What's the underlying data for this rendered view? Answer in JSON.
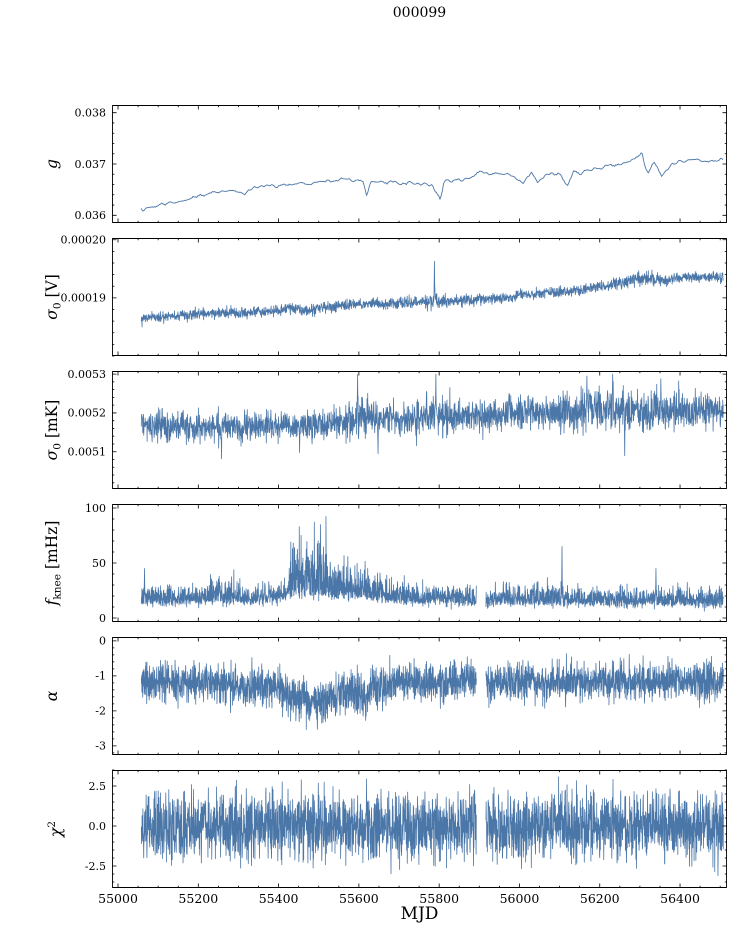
{
  "chart_data": {
    "type": "line",
    "title": "000099",
    "xlabel": "MJD",
    "line_color": "#4a76a8",
    "axis_color": "#000000",
    "x_range": [
      54985,
      56517
    ],
    "x_start": 55058,
    "x_end": 56508,
    "x_ticks": {
      "vals": [
        55000,
        55200,
        55400,
        55600,
        55800,
        56000,
        56200,
        56400
      ],
      "labels": [
        "55000",
        "55200",
        "55400",
        "55600",
        "55800",
        "56000",
        "56200",
        "56400"
      ],
      "minor_step": 50
    },
    "panels": [
      {
        "name": "g",
        "ylabel_parts": [
          {
            "t": "g",
            "style": "it"
          }
        ],
        "ylim": [
          0.03585,
          0.03815
        ],
        "yticks": {
          "vals": [
            0.036,
            0.037,
            0.038
          ],
          "labels": [
            "0.036",
            "0.037",
            "0.038"
          ],
          "minor_step": 0.0002
        },
        "trend": {
          "x": [
            55060,
            55100,
            55150,
            55200,
            55250,
            55290,
            55310,
            55330,
            55360,
            55400,
            55450,
            55500,
            55550,
            55600,
            55612,
            55620,
            55630,
            55660,
            55700,
            55740,
            55780,
            55795,
            55803,
            55812,
            55830,
            55860,
            55900,
            55940,
            55980,
            56010,
            56030,
            56045,
            56070,
            56100,
            56120,
            56135,
            56150,
            56180,
            56220,
            56260,
            56285,
            56305,
            56320,
            56335,
            56355,
            56380,
            56420,
            56460,
            56500
          ],
          "y": [
            0.0361,
            0.03619,
            0.03626,
            0.03638,
            0.03645,
            0.03649,
            0.03641,
            0.03652,
            0.03656,
            0.03659,
            0.03661,
            0.03667,
            0.0367,
            0.03671,
            0.03665,
            0.03638,
            0.03667,
            0.03664,
            0.03662,
            0.03661,
            0.0366,
            0.0364,
            0.03632,
            0.03668,
            0.03666,
            0.0367,
            0.03684,
            0.0368,
            0.03679,
            0.03659,
            0.03683,
            0.03664,
            0.03682,
            0.0368,
            0.0366,
            0.03684,
            0.03683,
            0.0369,
            0.03694,
            0.037,
            0.03712,
            0.03719,
            0.0368,
            0.03703,
            0.03676,
            0.037,
            0.03708,
            0.03704,
            0.0371
          ]
        },
        "noise": {
          "kind": "gauss",
          "sigma": 3e-05,
          "smooth": 1
        },
        "noise_regions": [],
        "spikes": [],
        "gaps": [],
        "step": 3,
        "line_width": 0.9
      },
      {
        "name": "sigma0_V",
        "ylabel_parts": [
          {
            "t": "σ",
            "style": "it"
          },
          {
            "t": "0",
            "style": "sub"
          },
          {
            "t": " [V]"
          }
        ],
        "ylim": [
          0.00018,
          0.0002003
        ],
        "yticks": {
          "vals": [
            0.00019,
            0.0002
          ],
          "labels": [
            "0.00019",
            "0.00020"
          ],
          "minor_step": 2e-06
        },
        "trend": {
          "x": [
            55060,
            55120,
            55180,
            55240,
            55290,
            55300,
            55360,
            55420,
            55450,
            55460,
            55520,
            55580,
            55640,
            55700,
            55760,
            55820,
            55880,
            55940,
            55990,
            56000,
            56060,
            56120,
            56160,
            56200,
            56240,
            56280,
            56320,
            56360,
            56400,
            56450,
            56500
          ],
          "y": [
            0.0001863,
            0.0001868,
            0.0001871,
            0.0001874,
            0.0001876,
            0.0001872,
            0.0001876,
            0.000188,
            0.0001882,
            0.0001878,
            0.0001884,
            0.0001888,
            0.000189,
            0.0001891,
            0.0001893,
            0.0001894,
            0.0001896,
            0.0001899,
            0.0001901,
            0.0001906,
            0.0001908,
            0.000191,
            0.0001914,
            0.0001919,
            0.0001925,
            0.0001931,
            0.0001934,
            0.000193,
            0.0001934,
            0.0001937,
            0.0001936
          ]
        },
        "noise": {
          "kind": "gauss",
          "sigma": 4.5e-07
        },
        "noise_regions": [
          {
            "from": 55760,
            "to": 55830,
            "mult": 1.4
          },
          {
            "from": 56240,
            "to": 56360,
            "mult": 1.3
          }
        ],
        "spikes": [
          {
            "x": 55788,
            "v": 0.0001963
          },
          {
            "x": 56330,
            "v": 0.0001948
          }
        ],
        "gaps": [],
        "step": 0.6,
        "line_width": 0.8
      },
      {
        "name": "sigma0_mK",
        "ylabel_parts": [
          {
            "t": "σ",
            "style": "it"
          },
          {
            "t": "0",
            "style": "sub"
          },
          {
            "t": " [mK]"
          }
        ],
        "ylim": [
          0.005004,
          0.005308
        ],
        "yticks": {
          "vals": [
            0.0051,
            0.0052,
            0.0053
          ],
          "labels": [
            "0.0051",
            "0.0052",
            "0.0053"
          ],
          "minor_step": 2e-05
        },
        "trend": {
          "x": [
            55060,
            55150,
            55250,
            55350,
            55450,
            55530,
            55570,
            55600,
            55630,
            55680,
            55720,
            55760,
            55800,
            55840,
            55880,
            55920,
            55960,
            56000,
            56060,
            56120,
            56180,
            56240,
            56300,
            56360,
            56420,
            56480,
            56508
          ],
          "y": [
            0.005163,
            0.005166,
            0.005164,
            0.005167,
            0.005168,
            0.005172,
            0.005182,
            0.005192,
            0.00518,
            0.005188,
            0.005182,
            0.00519,
            0.005198,
            0.005192,
            0.005193,
            0.005196,
            0.005198,
            0.0052,
            0.005198,
            0.005202,
            0.005208,
            0.005212,
            0.005204,
            0.005209,
            0.005205,
            0.00521,
            0.005209
          ]
        },
        "noise": {
          "kind": "gauss",
          "sigma": 1.8e-05
        },
        "noise_regions": [
          {
            "from": 55560,
            "to": 55650,
            "mult": 1.5
          },
          {
            "from": 55740,
            "to": 55830,
            "mult": 1.5
          },
          {
            "from": 55900,
            "to": 56100,
            "mult": 1.15
          },
          {
            "from": 56100,
            "to": 56400,
            "mult": 1.45
          },
          {
            "from": 56400,
            "to": 56508,
            "mult": 1.25
          }
        ],
        "spikes": [
          {
            "x": 55258,
            "v": 0.005082
          },
          {
            "x": 55452,
            "v": 0.005098
          },
          {
            "x": 55597,
            "v": 0.005299
          },
          {
            "x": 55648,
            "v": 0.005095
          },
          {
            "x": 55792,
            "v": 0.0053
          },
          {
            "x": 56168,
            "v": 0.005295
          },
          {
            "x": 56232,
            "v": 0.0053
          },
          {
            "x": 56262,
            "v": 0.00509
          },
          {
            "x": 56352,
            "v": 0.005288
          }
        ],
        "gaps": [],
        "step": 0.6,
        "line_width": 0.8
      },
      {
        "name": "fknee",
        "ylabel_parts": [
          {
            "t": "f",
            "style": "it"
          },
          {
            "t": "knee",
            "style": "sub"
          },
          {
            "t": " [mHz]"
          }
        ],
        "ylim": [
          -3.6,
          103.6
        ],
        "yticks": {
          "vals": [
            0,
            50,
            100
          ],
          "labels": [
            "0",
            "50",
            "100"
          ],
          "minor_step": 10
        },
        "trend": {
          "x": [
            55060,
            55200,
            55300,
            55380,
            55420,
            55440,
            55480,
            55520,
            55560,
            55600,
            55640,
            55690,
            55750,
            55810,
            55880,
            55950,
            56020,
            56100,
            56200,
            56300,
            56400,
            56500
          ],
          "y": [
            14,
            15,
            15,
            16,
            19,
            21,
            22,
            20,
            18,
            21,
            17,
            16,
            15,
            15,
            14,
            14,
            14,
            13.5,
            13,
            13,
            13,
            13
          ]
        },
        "noise": {
          "kind": "skew",
          "up": 7.5,
          "down": 2.5
        },
        "noise_regions": [
          {
            "from": 55230,
            "to": 55310,
            "mult": 1.35
          },
          {
            "from": 55425,
            "to": 55520,
            "mult": 3.2
          },
          {
            "from": 55520,
            "to": 55575,
            "mult": 2.0
          },
          {
            "from": 55575,
            "to": 55655,
            "mult": 1.7
          },
          {
            "from": 55655,
            "to": 55720,
            "mult": 1.25
          },
          {
            "from": 56030,
            "to": 56115,
            "mult": 1.2
          }
        ],
        "spikes": [
          {
            "x": 55066,
            "v": 45
          },
          {
            "x": 55252,
            "v": 38
          },
          {
            "x": 55960,
            "v": 33
          },
          {
            "x": 56034,
            "v": 30
          },
          {
            "x": 56106,
            "v": 65
          },
          {
            "x": 56340,
            "v": 45
          },
          {
            "x": 56452,
            "v": 28
          }
        ],
        "gaps": [
          [
            55893,
            55916
          ]
        ],
        "clamp_min": 4.5,
        "step": 0.5,
        "line_width": 0.8
      },
      {
        "name": "alpha",
        "ylabel_parts": [
          {
            "t": "α",
            "style": "it"
          }
        ],
        "ylim": [
          -3.26,
          0.11
        ],
        "yticks": {
          "vals": [
            0,
            -1,
            -2,
            -3
          ],
          "labels": [
            "0",
            "-1",
            "-2",
            "-3"
          ],
          "minor_step": 0.2
        },
        "trend": {
          "x": [
            55060,
            55200,
            55270,
            55310,
            55340,
            55370,
            55400,
            55430,
            55470,
            55520,
            55560,
            55590,
            55615,
            55640,
            55670,
            55720,
            55800,
            55900,
            56000,
            56100,
            56200,
            56300,
            56400,
            56500
          ],
          "y": [
            -1.15,
            -1.15,
            -1.25,
            -1.45,
            -1.3,
            -1.3,
            -1.35,
            -1.6,
            -1.7,
            -1.72,
            -1.55,
            -1.45,
            -1.55,
            -1.3,
            -1.18,
            -1.15,
            -1.2,
            -1.15,
            -1.15,
            -1.18,
            -1.15,
            -1.15,
            -1.15,
            -1.15
          ]
        },
        "noise": {
          "kind": "gauss",
          "sigma": 0.27
        },
        "noise_regions": [
          {
            "from": 55420,
            "to": 55650,
            "mult": 1.15
          },
          {
            "from": 55060,
            "to": 55120,
            "mult": 1.1
          }
        ],
        "spikes": [],
        "gaps": [
          [
            55893,
            55916
          ]
        ],
        "step": 0.5,
        "line_width": 0.8
      },
      {
        "name": "chi2",
        "ylabel_parts": [
          {
            "t": "χ",
            "style": "it"
          },
          {
            "t": "2",
            "style": "sup"
          }
        ],
        "ylim": [
          -3.875,
          3.5
        ],
        "yticks": {
          "vals": [
            2.5,
            0,
            -2.5
          ],
          "labels": [
            "2.5",
            "0.0",
            "-2.5"
          ],
          "minor_step": 0.5
        },
        "trend": {
          "x": [
            55060,
            56508
          ],
          "y": [
            0,
            0
          ]
        },
        "noise": {
          "kind": "gauss",
          "sigma": 1.03
        },
        "noise_regions": [],
        "spikes": [],
        "gaps": [
          [
            55893,
            55916
          ]
        ],
        "step": 0.5,
        "line_width": 0.8
      }
    ]
  }
}
